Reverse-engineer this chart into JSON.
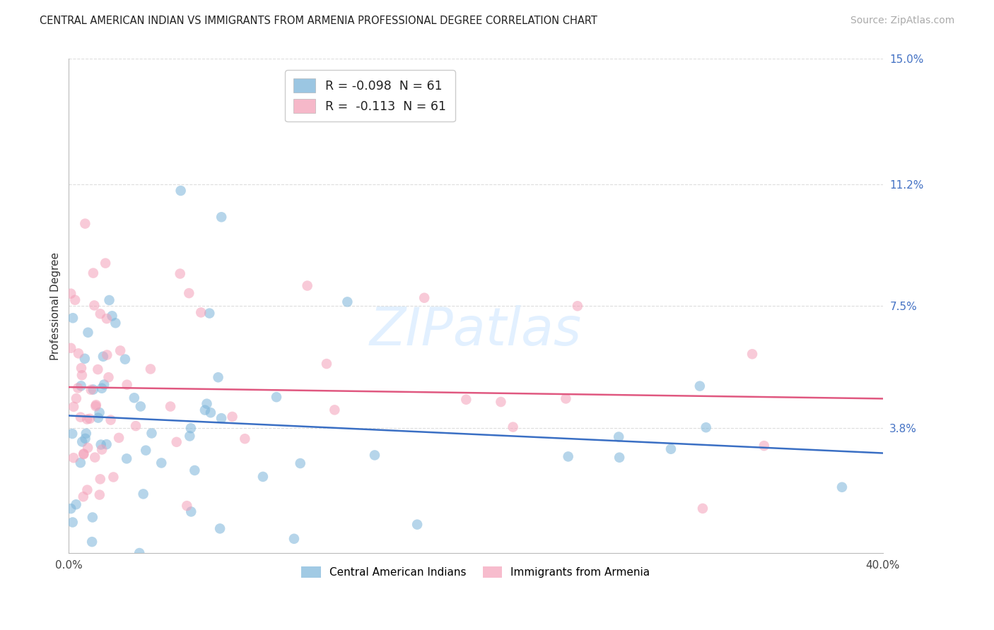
{
  "title": "CENTRAL AMERICAN INDIAN VS IMMIGRANTS FROM ARMENIA PROFESSIONAL DEGREE CORRELATION CHART",
  "source": "Source: ZipAtlas.com",
  "ylabel": "Professional Degree",
  "xlim": [
    0.0,
    40.0
  ],
  "ylim": [
    0.0,
    15.0
  ],
  "ytick_values": [
    15.0,
    11.2,
    7.5,
    3.8
  ],
  "background_color": "#ffffff",
  "grid_color": "#dddddd",
  "blue_color": "#7ab4d9",
  "pink_color": "#f4a0b8",
  "regression_blue": "#3a6fc4",
  "regression_pink": "#e05880",
  "watermark_color": "#ddeeff",
  "title_color": "#222222",
  "source_color": "#aaaaaa",
  "ytick_color": "#4472c4",
  "legend1_labels": [
    "R = -0.098  N = 61",
    "R =  -0.113  N = 61"
  ],
  "legend2_labels": [
    "Central American Indians",
    "Immigrants from Armenia"
  ],
  "blue_intercept": 4.1,
  "blue_slope": -0.038,
  "pink_intercept": 5.0,
  "pink_slope": -0.038
}
